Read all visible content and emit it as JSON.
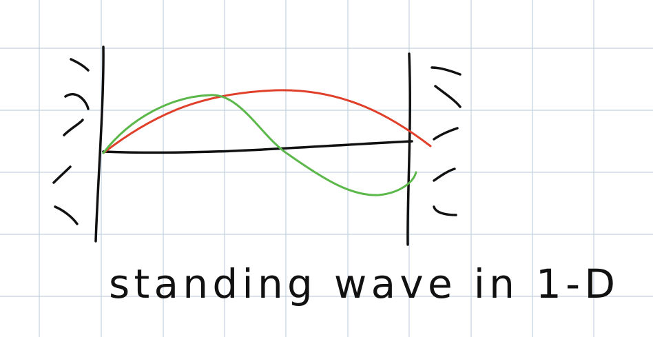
{
  "caption": "standing wave in 1-D"
}
